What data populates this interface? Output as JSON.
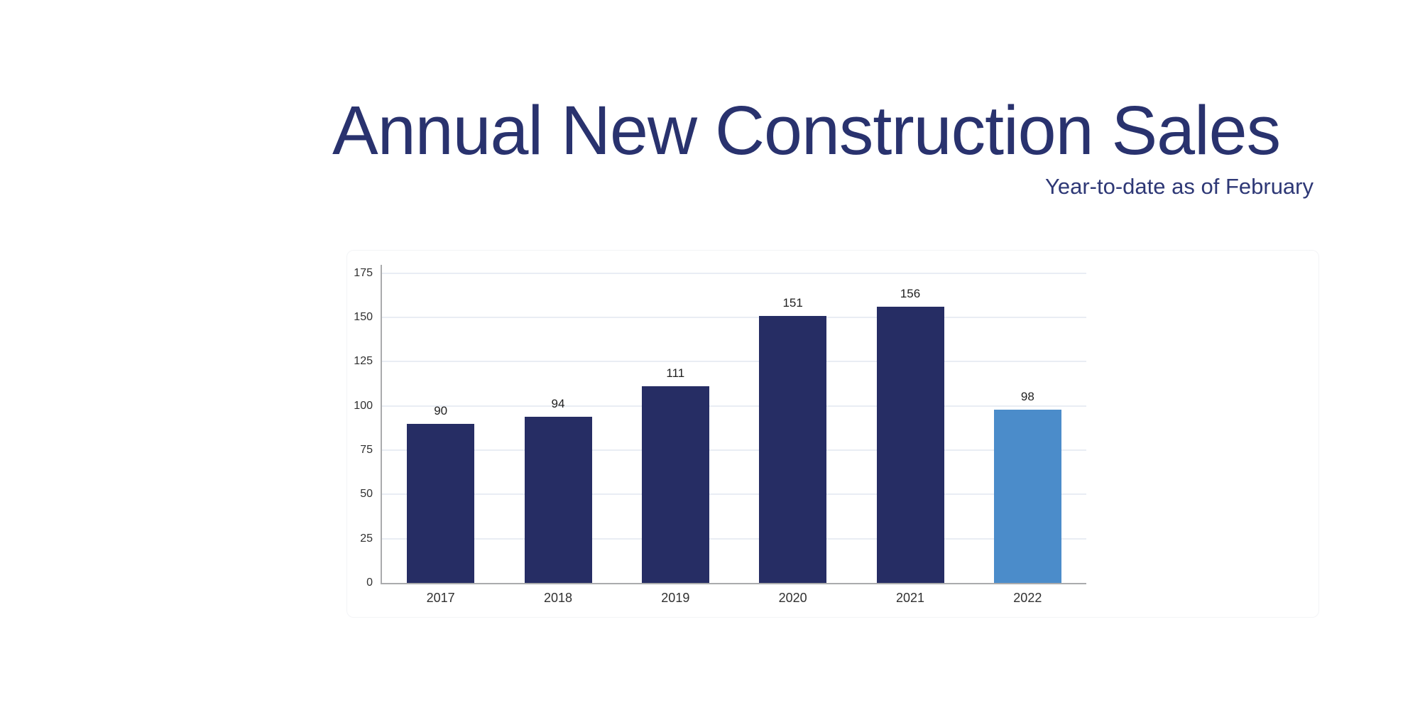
{
  "header": {
    "title": "Annual New Construction Sales",
    "subtitle": "Year-to-date as of February"
  },
  "chart_data": {
    "type": "bar",
    "title": "Annual New Construction Sales",
    "subtitle": "Year-to-date as of February",
    "categories": [
      "2017",
      "2018",
      "2019",
      "2020",
      "2021",
      "2022"
    ],
    "values": [
      90,
      94,
      111,
      151,
      156,
      98
    ],
    "bar_value_labels": [
      "90",
      "94",
      "111",
      "151",
      "156",
      "98"
    ],
    "highlighted_category": "2022",
    "xlabel": "",
    "ylabel": "",
    "ylim": [
      0,
      175
    ],
    "yticks": [
      0,
      25,
      50,
      75,
      100,
      125,
      150,
      175
    ],
    "grid": true,
    "legend": false,
    "bar_colors": [
      "#262d64",
      "#262d64",
      "#262d64",
      "#262d64",
      "#262d64",
      "#4b8cca"
    ],
    "colors": {
      "bar_default": "#262d64",
      "bar_highlight": "#4b8cca",
      "title_text": "#29326e",
      "subtitle_text": "#2e3876",
      "gridline": "#e9edf4",
      "axis_line": "#aaabad",
      "tick_label": "#303030",
      "value_label": "#1f1f1f",
      "background": "#ffffff"
    }
  }
}
